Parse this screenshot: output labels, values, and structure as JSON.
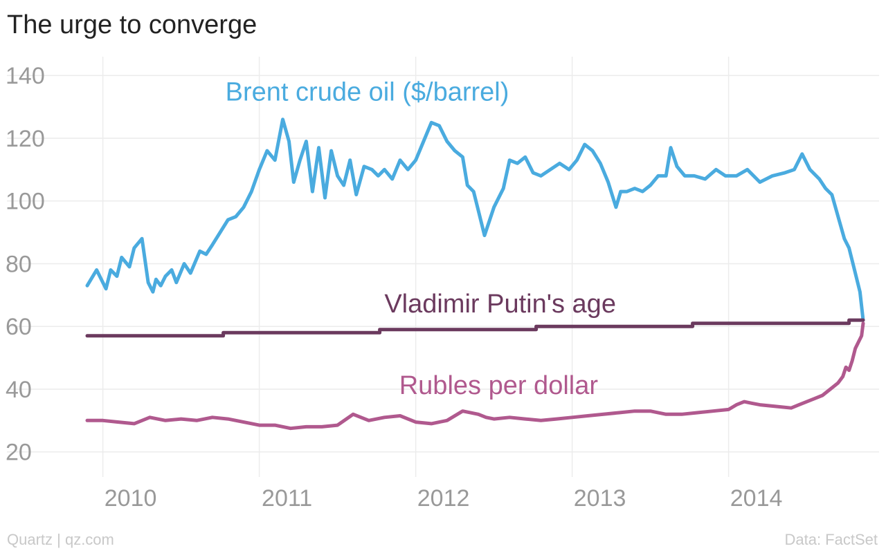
{
  "chart_data": {
    "type": "line",
    "title": "The urge to converge",
    "source_left": "Quartz | qz.com",
    "source_right": "Data: FactSet",
    "xlim": [
      2009.9,
      2014.9
    ],
    "ylim": [
      12,
      146
    ],
    "x_ticks": [
      2010,
      2011,
      2012,
      2013,
      2014
    ],
    "x_tick_labels": [
      "2010",
      "2011",
      "2012",
      "2013",
      "2014"
    ],
    "y_ticks": [
      20,
      40,
      60,
      80,
      100,
      120,
      140
    ],
    "y_tick_labels": [
      "20",
      "40",
      "60",
      "80",
      "100",
      "120",
      "140"
    ],
    "grid": true,
    "series": [
      {
        "name": "Brent crude oil ($/barrel)",
        "color": "#4aabdf",
        "label_x": 2011.69,
        "label_y": 132,
        "x": [
          2009.9,
          2009.96,
          2010.02,
          2010.05,
          2010.09,
          2010.12,
          2010.17,
          2010.2,
          2010.25,
          2010.29,
          2010.32,
          2010.34,
          2010.37,
          2010.4,
          2010.44,
          2010.47,
          2010.52,
          2010.56,
          2010.62,
          2010.66,
          2010.7,
          2010.75,
          2010.8,
          2010.85,
          2010.9,
          2010.95,
          2011.0,
          2011.05,
          2011.1,
          2011.15,
          2011.19,
          2011.22,
          2011.26,
          2011.3,
          2011.34,
          2011.38,
          2011.42,
          2011.46,
          2011.5,
          2011.54,
          2011.58,
          2011.62,
          2011.67,
          2011.72,
          2011.76,
          2011.8,
          2011.85,
          2011.9,
          2011.95,
          2012.0,
          2012.05,
          2012.1,
          2012.15,
          2012.2,
          2012.25,
          2012.3,
          2012.33,
          2012.37,
          2012.4,
          2012.44,
          2012.5,
          2012.56,
          2012.6,
          2012.65,
          2012.7,
          2012.75,
          2012.8,
          2012.86,
          2012.92,
          2012.98,
          2013.03,
          2013.08,
          2013.13,
          2013.18,
          2013.23,
          2013.28,
          2013.31,
          2013.35,
          2013.4,
          2013.45,
          2013.5,
          2013.55,
          2013.6,
          2013.63,
          2013.67,
          2013.72,
          2013.78,
          2013.85,
          2013.92,
          2013.98,
          2014.05,
          2014.12,
          2014.2,
          2014.28,
          2014.36,
          2014.42,
          2014.47,
          2014.52,
          2014.58,
          2014.62,
          2014.66,
          2014.7,
          2014.74,
          2014.77,
          2014.8,
          2014.84,
          2014.86
        ],
        "y": [
          73,
          78,
          72,
          78,
          76,
          82,
          79,
          85,
          88,
          74,
          71,
          75,
          73,
          76,
          78,
          74,
          80,
          77,
          84,
          83,
          86,
          90,
          94,
          95,
          98,
          103,
          110,
          116,
          113,
          126,
          119,
          106,
          113,
          119,
          103,
          117,
          101,
          116,
          108,
          105,
          113,
          102,
          111,
          110,
          108,
          110,
          107,
          113,
          110,
          113,
          119,
          125,
          124,
          119,
          116,
          114,
          105,
          103,
          97,
          89,
          98,
          104,
          113,
          112,
          114,
          109,
          108,
          110,
          112,
          110,
          113,
          118,
          116,
          112,
          106,
          98,
          103,
          103,
          104,
          103,
          105,
          108,
          108,
          117,
          111,
          108,
          108,
          107,
          110,
          108,
          108,
          110,
          106,
          108,
          109,
          110,
          115,
          110,
          107,
          104,
          102,
          95,
          88,
          85,
          79,
          71,
          62
        ]
      },
      {
        "name": "Vladimir Putin's age",
        "color": "#6b3a5e",
        "label_x": 2012.54,
        "label_y": 64.5,
        "x": [
          2009.9,
          2010.77,
          2010.77,
          2011.77,
          2011.77,
          2012.77,
          2012.77,
          2013.77,
          2013.77,
          2014.77,
          2014.77,
          2014.86
        ],
        "y": [
          57,
          57,
          58,
          58,
          59,
          59,
          60,
          60,
          61,
          61,
          62,
          62
        ]
      },
      {
        "name": "Rubles per dollar",
        "color": "#b0598e",
        "label_x": 2012.53,
        "label_y": 38.5,
        "x": [
          2009.9,
          2010.0,
          2010.1,
          2010.2,
          2010.3,
          2010.4,
          2010.5,
          2010.6,
          2010.7,
          2010.8,
          2010.9,
          2011.0,
          2011.1,
          2011.2,
          2011.3,
          2011.4,
          2011.5,
          2011.6,
          2011.65,
          2011.7,
          2011.75,
          2011.8,
          2011.9,
          2012.0,
          2012.1,
          2012.2,
          2012.3,
          2012.4,
          2012.45,
          2012.5,
          2012.6,
          2012.7,
          2012.8,
          2012.9,
          2013.0,
          2013.1,
          2013.2,
          2013.3,
          2013.4,
          2013.5,
          2013.6,
          2013.7,
          2013.8,
          2013.9,
          2014.0,
          2014.05,
          2014.1,
          2014.15,
          2014.2,
          2014.3,
          2014.4,
          2014.45,
          2014.5,
          2014.55,
          2014.6,
          2014.65,
          2014.7,
          2014.73,
          2014.75,
          2014.77,
          2014.79,
          2014.81,
          2014.83,
          2014.85,
          2014.86
        ],
        "y": [
          30,
          30,
          29.5,
          29,
          31,
          30,
          30.5,
          30,
          31,
          30.5,
          29.5,
          28.5,
          28.5,
          27.5,
          28,
          28,
          28.5,
          32,
          31,
          30,
          30.5,
          31,
          31.5,
          29.5,
          29,
          30,
          33,
          32,
          31,
          30.5,
          31,
          30.5,
          30,
          30.5,
          31,
          31.5,
          32,
          32.5,
          33,
          33,
          32,
          32,
          32.5,
          33,
          33.5,
          35,
          36,
          35.5,
          35,
          34.5,
          34,
          35,
          36,
          37,
          38,
          40,
          42,
          44,
          47,
          46,
          49,
          53,
          55,
          57,
          61
        ]
      }
    ]
  }
}
